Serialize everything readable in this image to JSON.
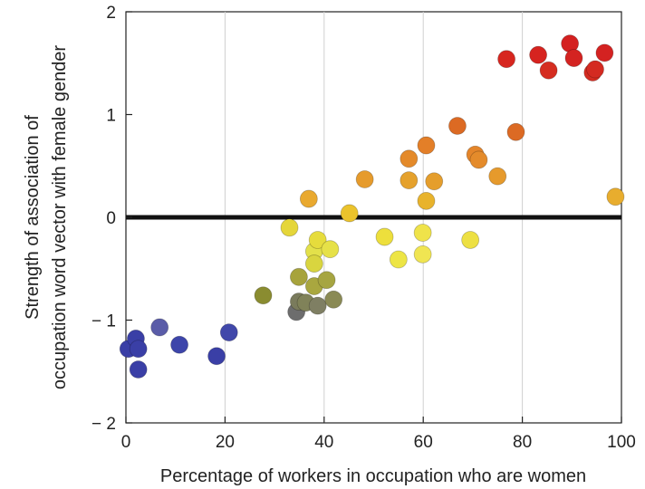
{
  "chart_data": {
    "type": "scatter",
    "title": "",
    "xlabel": "Percentage of workers in occupation who are women",
    "ylabel_lines": [
      "Strength of association of",
      "occupation word vector with female gender"
    ],
    "xlim": [
      0,
      100
    ],
    "ylim": [
      -2,
      2
    ],
    "xticks": [
      0,
      20,
      40,
      60,
      80,
      100
    ],
    "yticks": [
      -2,
      -1,
      0,
      1,
      2
    ],
    "xtick_labels": [
      "0",
      "20",
      "40",
      "60",
      "80",
      "100"
    ],
    "ytick_labels": [
      "− 2",
      "− 1",
      "0",
      "1",
      "2"
    ],
    "grid": "vertical",
    "reference_line_y": 0,
    "points": [
      {
        "x": 0.5,
        "y": -1.28,
        "color": "#3a3fa6"
      },
      {
        "x": 2.0,
        "y": -1.18,
        "color": "#3a3fa6"
      },
      {
        "x": 2.5,
        "y": -1.28,
        "color": "#3a3fa6"
      },
      {
        "x": 2.5,
        "y": -1.48,
        "color": "#3a3fa6"
      },
      {
        "x": 6.8,
        "y": -1.07,
        "color": "#5a5ca8"
      },
      {
        "x": 10.8,
        "y": -1.24,
        "color": "#3d45aa"
      },
      {
        "x": 18.3,
        "y": -1.35,
        "color": "#3a3fa6"
      },
      {
        "x": 20.8,
        "y": -1.12,
        "color": "#4148aa"
      },
      {
        "x": 27.7,
        "y": -0.76,
        "color": "#8a8c30"
      },
      {
        "x": 33.0,
        "y": -0.1,
        "color": "#e5d63a"
      },
      {
        "x": 34.4,
        "y": -0.92,
        "color": "#6d6d6d"
      },
      {
        "x": 34.9,
        "y": -0.82,
        "color": "#7a7b5c"
      },
      {
        "x": 34.9,
        "y": -0.58,
        "color": "#a7a33c"
      },
      {
        "x": 36.3,
        "y": -0.83,
        "color": "#808259"
      },
      {
        "x": 36.9,
        "y": 0.18,
        "color": "#e9a92f"
      },
      {
        "x": 38.0,
        "y": -0.33,
        "color": "#e3e14a"
      },
      {
        "x": 38.0,
        "y": -0.45,
        "color": "#d9d53f"
      },
      {
        "x": 38.0,
        "y": -0.67,
        "color": "#a9a73f"
      },
      {
        "x": 38.7,
        "y": -0.22,
        "color": "#e6dc3c"
      },
      {
        "x": 38.7,
        "y": -0.86,
        "color": "#7f7f63"
      },
      {
        "x": 40.5,
        "y": -0.61,
        "color": "#a6a541"
      },
      {
        "x": 41.2,
        "y": -0.31,
        "color": "#e6e148"
      },
      {
        "x": 41.9,
        "y": -0.8,
        "color": "#8a8a55"
      },
      {
        "x": 45.1,
        "y": 0.04,
        "color": "#ebc32c"
      },
      {
        "x": 48.2,
        "y": 0.37,
        "color": "#e69b2c"
      },
      {
        "x": 52.2,
        "y": -0.19,
        "color": "#eddf3c"
      },
      {
        "x": 55.0,
        "y": -0.41,
        "color": "#ede545"
      },
      {
        "x": 57.1,
        "y": 0.57,
        "color": "#e48a2a"
      },
      {
        "x": 57.1,
        "y": 0.36,
        "color": "#e5a12c"
      },
      {
        "x": 59.9,
        "y": -0.15,
        "color": "#efe34a"
      },
      {
        "x": 59.9,
        "y": -0.36,
        "color": "#f0e552"
      },
      {
        "x": 60.6,
        "y": 0.7,
        "color": "#e37f28"
      },
      {
        "x": 60.6,
        "y": 0.16,
        "color": "#e8b32c"
      },
      {
        "x": 62.2,
        "y": 0.35,
        "color": "#e59e2c"
      },
      {
        "x": 66.9,
        "y": 0.89,
        "color": "#dc6a23"
      },
      {
        "x": 69.5,
        "y": -0.22,
        "color": "#ede043"
      },
      {
        "x": 70.5,
        "y": 0.61,
        "color": "#e4852a"
      },
      {
        "x": 71.2,
        "y": 0.56,
        "color": "#e48b2b"
      },
      {
        "x": 75.0,
        "y": 0.4,
        "color": "#e69a2c"
      },
      {
        "x": 76.8,
        "y": 1.54,
        "color": "#d7261f"
      },
      {
        "x": 78.7,
        "y": 0.83,
        "color": "#dc6a24"
      },
      {
        "x": 83.2,
        "y": 1.58,
        "color": "#d6231f"
      },
      {
        "x": 85.3,
        "y": 1.43,
        "color": "#d52d20"
      },
      {
        "x": 89.6,
        "y": 1.69,
        "color": "#d42020"
      },
      {
        "x": 90.4,
        "y": 1.55,
        "color": "#d42321"
      },
      {
        "x": 94.2,
        "y": 1.41,
        "color": "#d42c21"
      },
      {
        "x": 94.7,
        "y": 1.44,
        "color": "#d42a21"
      },
      {
        "x": 96.6,
        "y": 1.6,
        "color": "#d42221"
      },
      {
        "x": 98.8,
        "y": 0.2,
        "color": "#e8ad2e"
      }
    ]
  }
}
